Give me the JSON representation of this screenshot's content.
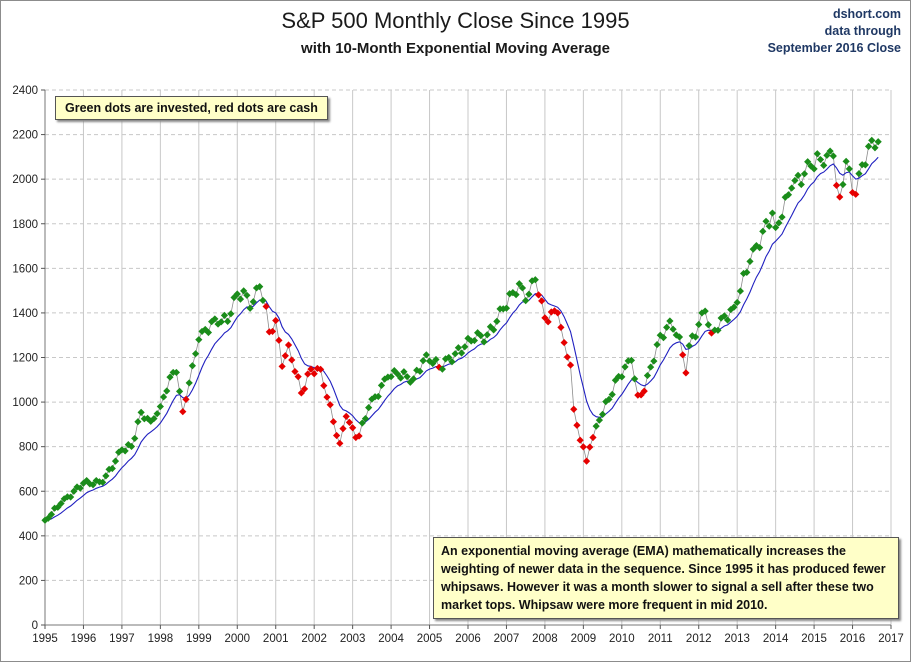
{
  "header": {
    "title": "S&P 500 Monthly Close Since 1995",
    "subtitle": "with 10-Month Exponential Moving Average",
    "source_lines": [
      "dshort.com",
      "data through",
      "September 2016 Close"
    ]
  },
  "notes": {
    "legend_note": "Green dots are invested, red dots are cash",
    "ema_note": "An exponential moving average (EMA) mathematically increases the weighting of newer data in the sequence. Since 1995 it has produced fewer whipsaws. However it was a month slower to signal a  sell after these two market tops. Whipsaw were more frequent in mid  2010."
  },
  "chart_data": {
    "type": "line",
    "x_ticks": [
      "1995",
      "1996",
      "1997",
      "1998",
      "1999",
      "2000",
      "2001",
      "2002",
      "2003",
      "2004",
      "2005",
      "2006",
      "2007",
      "2008",
      "2009",
      "2010",
      "2011",
      "2012",
      "2013",
      "2014",
      "2015",
      "2016",
      "2017"
    ],
    "y_ticks": [
      0,
      200,
      400,
      600,
      800,
      1000,
      1200,
      1400,
      1600,
      1800,
      2000,
      2200,
      2400
    ],
    "xlim": [
      "1995-01",
      "2017-01"
    ],
    "ylim": [
      0,
      2400
    ],
    "grid": true,
    "colors": {
      "invested": "#1a8c1a",
      "cash": "#e60000",
      "ema": "#2020c0",
      "close_line": "#8c8c8c"
    },
    "anchors": [
      [
        "1995-01",
        470
      ],
      [
        "1995-06",
        545
      ],
      [
        "1996-01",
        636
      ],
      [
        "1996-07",
        640
      ],
      [
        "1997-01",
        786
      ],
      [
        "1997-04",
        801
      ],
      [
        "1997-07",
        954
      ],
      [
        "1997-10",
        914
      ],
      [
        "1998-01",
        980
      ],
      [
        "1998-04",
        1112
      ],
      [
        "1998-06",
        1133
      ],
      [
        "1998-08",
        957
      ],
      [
        "1998-11",
        1163
      ],
      [
        "1999-01",
        1280
      ],
      [
        "1999-06",
        1373
      ],
      [
        "1999-10",
        1362
      ],
      [
        "1999-12",
        1469
      ],
      [
        "2000-03",
        1499
      ],
      [
        "2000-05",
        1421
      ],
      [
        "2000-08",
        1518
      ],
      [
        "2000-10",
        1429
      ],
      [
        "2000-11",
        1315
      ],
      [
        "2001-01",
        1366
      ],
      [
        "2001-03",
        1160
      ],
      [
        "2001-05",
        1256
      ],
      [
        "2001-09",
        1041
      ],
      [
        "2001-12",
        1148
      ],
      [
        "2002-03",
        1147
      ],
      [
        "2002-07",
        912
      ],
      [
        "2002-09",
        815
      ],
      [
        "2002-11",
        936
      ],
      [
        "2003-02",
        841
      ],
      [
        "2003-03",
        848
      ],
      [
        "2003-06",
        975
      ],
      [
        "2003-12",
        1112
      ],
      [
        "2004-03",
        1126
      ],
      [
        "2004-08",
        1104
      ],
      [
        "2004-12",
        1212
      ],
      [
        "2005-04",
        1156
      ],
      [
        "2005-12",
        1248
      ],
      [
        "2006-04",
        1311
      ],
      [
        "2006-06",
        1270
      ],
      [
        "2006-12",
        1418
      ],
      [
        "2007-05",
        1531
      ],
      [
        "2007-07",
        1455
      ],
      [
        "2007-10",
        1549
      ],
      [
        "2007-11",
        1481
      ],
      [
        "2008-01",
        1378
      ],
      [
        "2008-05",
        1400
      ],
      [
        "2008-07",
        1267
      ],
      [
        "2008-09",
        1166
      ],
      [
        "2008-10",
        968
      ],
      [
        "2008-11",
        896
      ],
      [
        "2009-02",
        735
      ],
      [
        "2009-03",
        798
      ],
      [
        "2009-06",
        919
      ],
      [
        "2009-12",
        1115
      ],
      [
        "2010-04",
        1187
      ],
      [
        "2010-06",
        1031
      ],
      [
        "2010-08",
        1049
      ],
      [
        "2010-12",
        1258
      ],
      [
        "2011-04",
        1364
      ],
      [
        "2011-07",
        1292
      ],
      [
        "2011-09",
        1131
      ],
      [
        "2011-10",
        1253
      ],
      [
        "2012-03",
        1408
      ],
      [
        "2012-05",
        1310
      ],
      [
        "2012-12",
        1426
      ],
      [
        "2013-05",
        1631
      ],
      [
        "2013-12",
        1848
      ],
      [
        "2014-01",
        1783
      ],
      [
        "2014-06",
        1960
      ],
      [
        "2014-12",
        2059
      ],
      [
        "2015-05",
        2107
      ],
      [
        "2015-07",
        2104
      ],
      [
        "2015-08",
        1972
      ],
      [
        "2015-09",
        1920
      ],
      [
        "2015-11",
        2080
      ],
      [
        "2016-01",
        1940
      ],
      [
        "2016-02",
        1932
      ],
      [
        "2016-04",
        2065
      ],
      [
        "2016-07",
        2174
      ],
      [
        "2016-09",
        2168
      ]
    ],
    "cash_months": [
      "1998-08",
      "1998-09",
      "2000-10",
      "2000-11",
      "2000-12",
      "2001-01",
      "2001-02",
      "2001-03",
      "2001-04",
      "2001-05",
      "2001-06",
      "2001-07",
      "2001-08",
      "2001-09",
      "2001-10",
      "2001-11",
      "2001-12",
      "2002-01",
      "2002-02",
      "2002-03",
      "2002-04",
      "2002-05",
      "2002-06",
      "2002-07",
      "2002-08",
      "2002-09",
      "2002-10",
      "2002-11",
      "2002-12",
      "2003-01",
      "2003-02",
      "2003-03",
      "2005-04",
      "2007-11",
      "2007-12",
      "2008-01",
      "2008-02",
      "2008-03",
      "2008-04",
      "2008-05",
      "2008-06",
      "2008-07",
      "2008-08",
      "2008-09",
      "2008-10",
      "2008-11",
      "2008-12",
      "2009-01",
      "2009-02",
      "2009-03",
      "2009-04",
      "2010-06",
      "2010-07",
      "2010-08",
      "2011-08",
      "2011-09",
      "2012-05",
      "2015-08",
      "2015-09",
      "2016-01",
      "2016-02"
    ],
    "ema_period": 10
  }
}
